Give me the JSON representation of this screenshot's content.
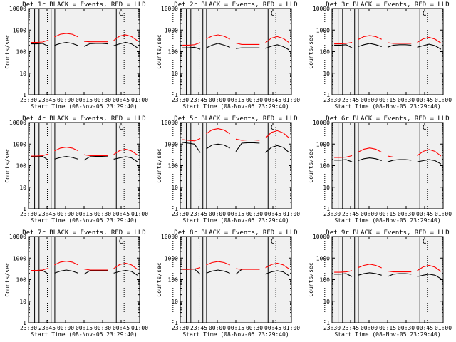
{
  "figure": {
    "background": "#ffffff",
    "plot_background": "#f0f0f0",
    "axis_color": "#000000"
  },
  "colors": {
    "events": "#000000",
    "lld": "#ff0000"
  },
  "shared": {
    "ylabel": "Counts/sec",
    "xlabel": "Start Time (08-Nov-05 23:29:40)",
    "x_ticks": [
      "23:30",
      "23:45",
      "00:00",
      "00:15",
      "00:30",
      "00:45",
      "01:00"
    ],
    "y_ticks": [
      "1",
      "10",
      "100",
      "1000",
      "10000"
    ],
    "marker_letter": "C"
  },
  "chart_data": [
    {
      "type": "line",
      "title": "Det 1r BLACK = Events, RED = LLD",
      "series": [
        {
          "name": "Events",
          "color": "#000000",
          "values": [
            230,
            230,
            240,
            175,
            195,
            240,
            270,
            240,
            190,
            175,
            235,
            240,
            240,
            230,
            190,
            230,
            270,
            230,
            150
          ]
        },
        {
          "name": "LLD",
          "color": "#ff0000",
          "values": [
            270,
            270,
            280,
            340,
            480,
            640,
            700,
            640,
            480,
            300,
            285,
            285,
            285,
            285,
            330,
            520,
            600,
            500,
            320
          ]
        }
      ]
    },
    {
      "type": "line",
      "title": "Det 2r BLACK = Events, RED = LLD",
      "series": [
        {
          "name": "Events",
          "color": "#000000",
          "values": [
            150,
            150,
            160,
            130,
            150,
            200,
            240,
            200,
            160,
            140,
            150,
            150,
            150,
            150,
            140,
            180,
            210,
            170,
            120
          ]
        },
        {
          "name": "LLD",
          "color": "#ff0000",
          "values": [
            200,
            200,
            210,
            260,
            390,
            530,
            600,
            520,
            380,
            250,
            215,
            215,
            215,
            215,
            260,
            420,
            500,
            410,
            260
          ]
        }
      ]
    },
    {
      "type": "line",
      "title": "Det 3r BLACK = Events, RED = LLD",
      "series": [
        {
          "name": "Events",
          "color": "#000000",
          "values": [
            200,
            200,
            210,
            150,
            170,
            210,
            240,
            210,
            170,
            160,
            200,
            210,
            210,
            200,
            160,
            190,
            220,
            190,
            130
          ]
        },
        {
          "name": "LLD",
          "color": "#ff0000",
          "values": [
            230,
            230,
            240,
            270,
            360,
            500,
            560,
            500,
            370,
            260,
            240,
            240,
            240,
            240,
            270,
            390,
            460,
            380,
            250
          ]
        }
      ]
    },
    {
      "type": "line",
      "title": "Det 4r BLACK = Events, RED = LLD",
      "series": [
        {
          "name": "Events",
          "color": "#000000",
          "values": [
            260,
            260,
            270,
            180,
            200,
            240,
            270,
            240,
            200,
            180,
            260,
            270,
            270,
            260,
            200,
            230,
            260,
            230,
            150
          ]
        },
        {
          "name": "LLD",
          "color": "#ff0000",
          "values": [
            280,
            280,
            290,
            350,
            480,
            650,
            720,
            650,
            490,
            320,
            290,
            290,
            290,
            290,
            330,
            500,
            580,
            480,
            310
          ]
        }
      ]
    },
    {
      "type": "line",
      "title": "Det 5r BLACK = Events, RED = LLD",
      "series": [
        {
          "name": "Events",
          "color": "#000000",
          "values": [
            1200,
            1100,
            1000,
            400,
            600,
            900,
            1000,
            900,
            650,
            450,
            1100,
            1150,
            1150,
            1100,
            400,
            700,
            850,
            700,
            400
          ]
        },
        {
          "name": "LLD",
          "color": "#ff0000",
          "values": [
            1600,
            1500,
            1400,
            1800,
            3000,
            4600,
            5200,
            4500,
            3000,
            1700,
            1500,
            1550,
            1550,
            1500,
            1900,
            3500,
            4200,
            3300,
            1900
          ]
        }
      ]
    },
    {
      "type": "line",
      "title": "Det 6r BLACK = Events, RED = LLD",
      "series": [
        {
          "name": "Events",
          "color": "#000000",
          "values": [
            180,
            180,
            190,
            150,
            170,
            210,
            230,
            210,
            170,
            150,
            180,
            190,
            190,
            180,
            150,
            170,
            190,
            170,
            120
          ]
        },
        {
          "name": "LLD",
          "color": "#ff0000",
          "values": [
            240,
            240,
            250,
            290,
            420,
            580,
            660,
            580,
            420,
            280,
            250,
            250,
            250,
            250,
            290,
            460,
            560,
            460,
            280
          ]
        }
      ]
    },
    {
      "type": "line",
      "title": "Det 7r BLACK = Events, RED = LLD",
      "series": [
        {
          "name": "Events",
          "color": "#000000",
          "values": [
            260,
            260,
            270,
            180,
            200,
            250,
            280,
            250,
            200,
            180,
            260,
            270,
            270,
            260,
            200,
            240,
            270,
            240,
            160
          ]
        },
        {
          "name": "LLD",
          "color": "#ff0000",
          "values": [
            270,
            270,
            280,
            340,
            480,
            650,
            720,
            650,
            480,
            310,
            280,
            280,
            280,
            280,
            330,
            500,
            580,
            480,
            300
          ]
        }
      ]
    },
    {
      "type": "line",
      "title": "Det 8r BLACK = Events, RED = LLD",
      "series": [
        {
          "name": "Events",
          "color": "#000000",
          "values": [
            300,
            300,
            310,
            180,
            200,
            250,
            280,
            250,
            200,
            180,
            300,
            310,
            310,
            300,
            180,
            230,
            260,
            230,
            150
          ]
        },
        {
          "name": "LLD",
          "color": "#ff0000",
          "values": [
            300,
            300,
            310,
            360,
            480,
            620,
            690,
            620,
            480,
            320,
            300,
            300,
            300,
            300,
            350,
            500,
            580,
            480,
            310
          ]
        }
      ]
    },
    {
      "type": "line",
      "title": "Det 9r BLACK = Events, RED = LLD",
      "series": [
        {
          "name": "Events",
          "color": "#000000",
          "values": [
            180,
            180,
            190,
            140,
            160,
            190,
            210,
            190,
            160,
            140,
            180,
            190,
            190,
            180,
            140,
            160,
            180,
            160,
            110
          ]
        },
        {
          "name": "LLD",
          "color": "#ff0000",
          "values": [
            220,
            220,
            230,
            260,
            360,
            460,
            520,
            460,
            350,
            250,
            230,
            230,
            230,
            230,
            260,
            390,
            460,
            380,
            240
          ]
        }
      ]
    }
  ]
}
